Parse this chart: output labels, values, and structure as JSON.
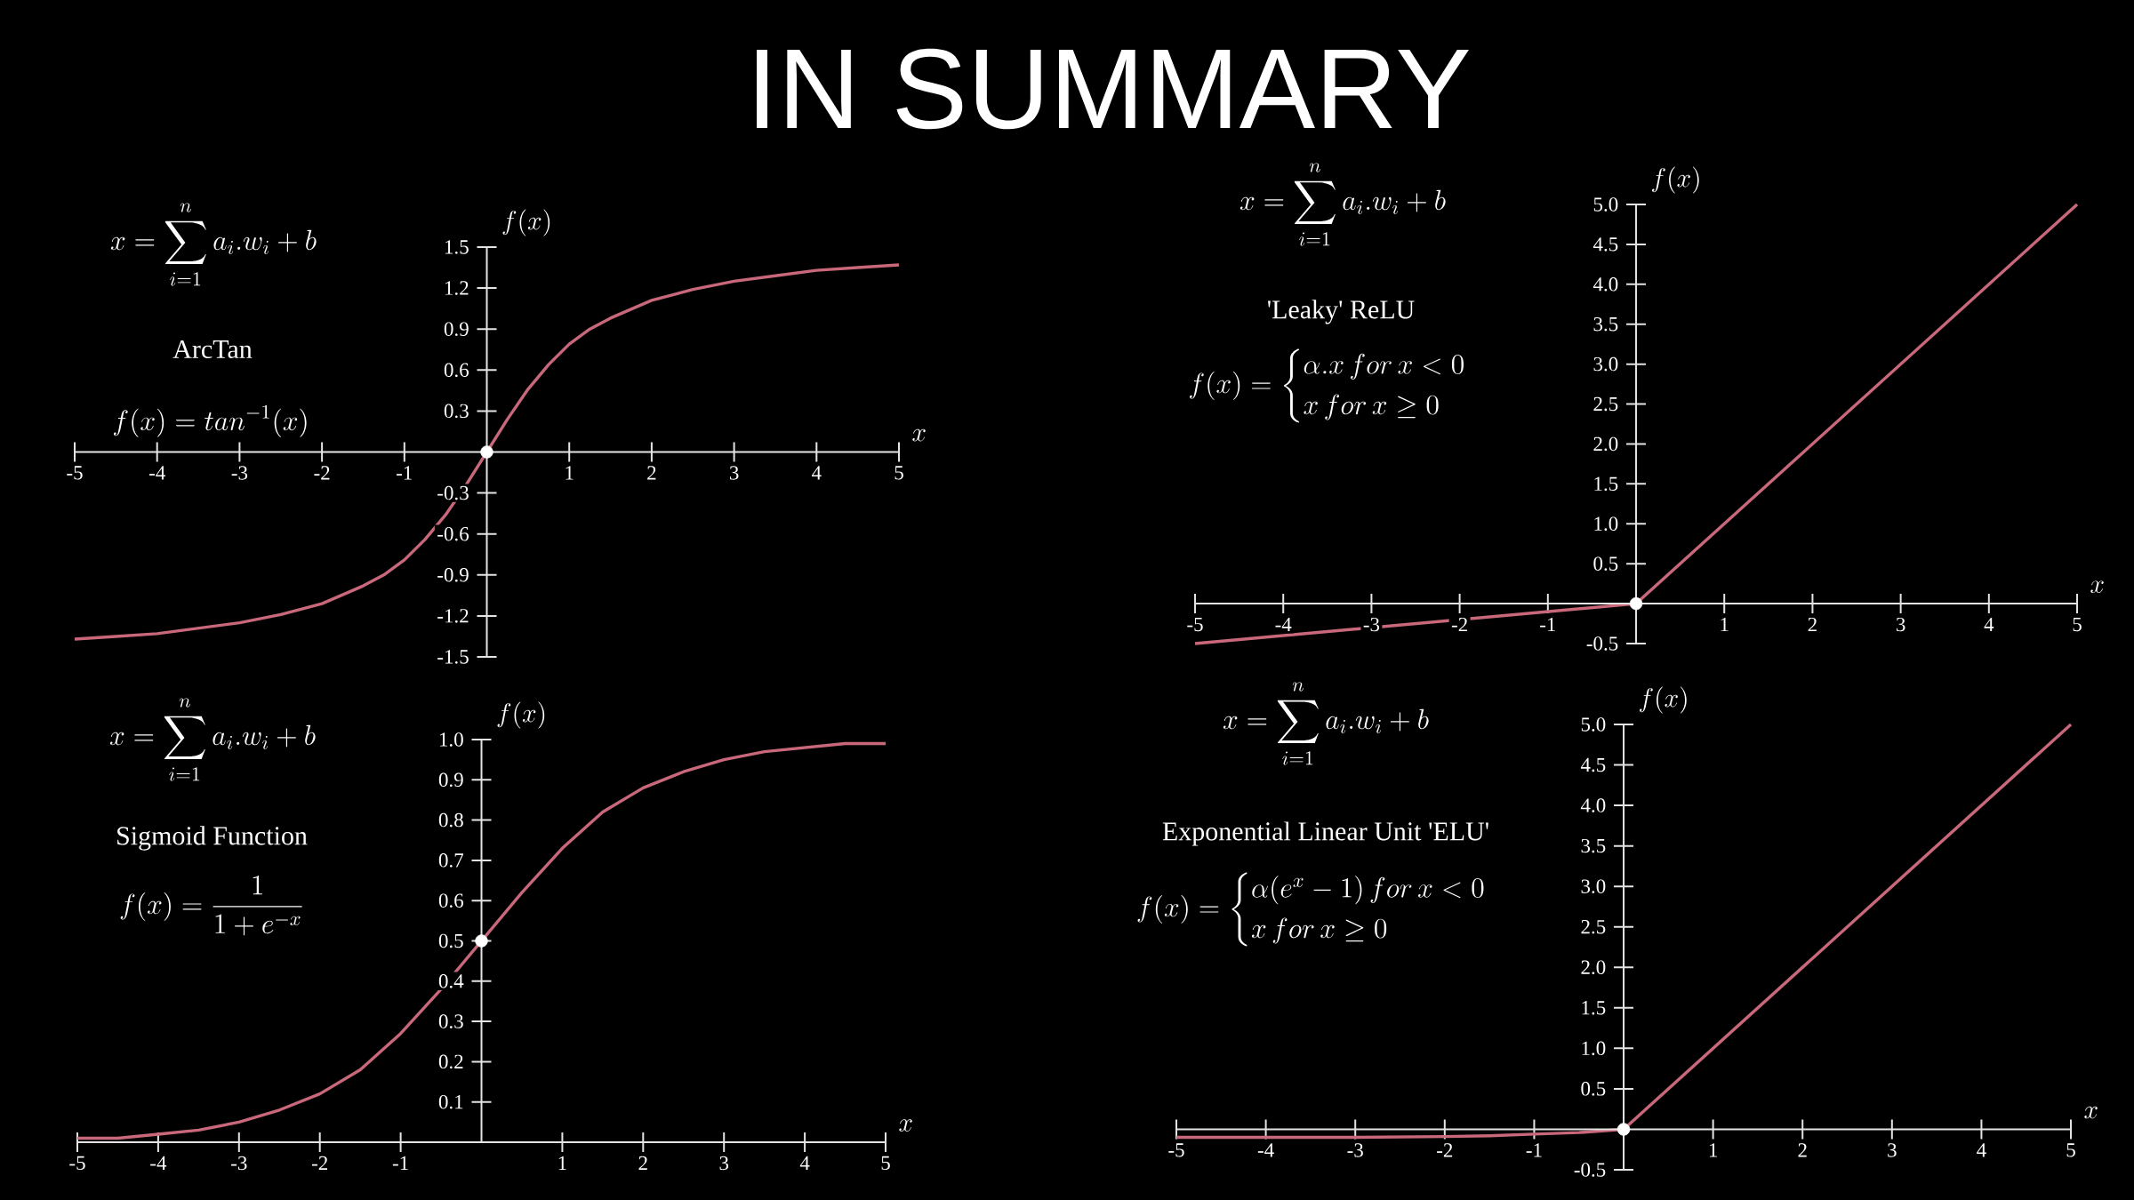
{
  "chart_data": [
    {
      "type": "other",
      "title": "IN SUMMARY"
    },
    {
      "type": "line",
      "title": "ArcTan",
      "annotations": [
        "x = \\sum_{i=1}^{n} a_i.w_i + b",
        "f(x) = tan^{-1}(x)"
      ],
      "xlabel": "x",
      "ylabel": "f(x)",
      "xlim": [
        -5,
        5
      ],
      "ylim": [
        -1.5,
        1.5
      ],
      "xticks": [
        -5,
        -4,
        -3,
        -2,
        -1,
        1,
        2,
        3,
        4,
        5
      ],
      "yticks": [
        -1.5,
        -1.2,
        -0.9,
        -0.6,
        -0.3,
        0.3,
        0.6,
        0.9,
        1.2,
        1.5
      ],
      "series": [
        {
          "type": "line",
          "color": "#c8687a",
          "x": [
            -5,
            -4.5,
            -4,
            -3.5,
            -3,
            -2.5,
            -2,
            -1.5,
            -1.25,
            -1,
            -0.75,
            -0.5,
            -0.25,
            0,
            0.25,
            0.5,
            0.75,
            1,
            1.25,
            1.5,
            2,
            2.5,
            3,
            3.5,
            4,
            4.5,
            5
          ],
          "values": [
            -1.37,
            -1.35,
            -1.33,
            -1.29,
            -1.25,
            -1.19,
            -1.11,
            -0.98,
            -0.9,
            -0.79,
            -0.64,
            -0.46,
            -0.24,
            0,
            0.24,
            0.46,
            0.64,
            0.79,
            0.9,
            0.98,
            1.11,
            1.19,
            1.25,
            1.29,
            1.33,
            1.35,
            1.37
          ]
        },
        {
          "type": "scatter",
          "color": "#ffffff",
          "marker": "circle",
          "x": [
            0
          ],
          "values": [
            0
          ]
        }
      ]
    },
    {
      "type": "line",
      "title": "'Leaky' ReLU",
      "annotations": [
        "x = \\sum_{i=1}^{n} a_i.w_i + b",
        "f(x) =\\begin{cases}\\alpha.x\\,for\\,x < 0\\\\ x\\,for\\,x \\geq 0\\end{cases}"
      ],
      "xlabel": "x",
      "ylabel": "f(x)",
      "xlim": [
        -5,
        5
      ],
      "ylim": [
        -0.5,
        5
      ],
      "xticks": [
        -5,
        -4,
        -3,
        -2,
        -1,
        1,
        2,
        3,
        4,
        5
      ],
      "yticks": [
        -0.5,
        0.5,
        {
          "value": 1,
          "label": "1.0"
        },
        1.5,
        {
          "value": 2,
          "label": "2.0"
        },
        2.5,
        {
          "value": 3,
          "label": "3.0"
        },
        3.5,
        {
          "value": 4,
          "label": "4.0"
        },
        4.5,
        {
          "value": 5,
          "label": "5.0"
        }
      ],
      "series": [
        {
          "type": "line",
          "color": "#c8687a",
          "x": [
            -5,
            0,
            5
          ],
          "values": [
            -0.5,
            0,
            5
          ]
        },
        {
          "type": "scatter",
          "color": "#ffffff",
          "marker": "circle",
          "x": [
            0
          ],
          "values": [
            0
          ]
        }
      ]
    },
    {
      "type": "line",
      "title": "Sigmoid Function",
      "annotations": [
        "x = \\sum_{i=1}^{n} a_i.w_i + b",
        "f(x) = \\frac{1}{1 + e^{-x}}"
      ],
      "xlabel": "x",
      "ylabel": "f(x)",
      "xlim": [
        -5,
        5
      ],
      "ylim": [
        0,
        1
      ],
      "xticks": [
        -5,
        -4,
        -3,
        -2,
        -1,
        1,
        2,
        3,
        4,
        5
      ],
      "yticks": [
        0.1,
        0.2,
        0.3,
        0.4,
        0.5,
        0.6,
        0.7,
        0.8,
        0.9,
        {
          "value": 1,
          "label": "1.0"
        }
      ],
      "series": [
        {
          "type": "line",
          "color": "#c8687a",
          "x": [
            -5,
            -4.5,
            -4,
            -3.5,
            -3,
            -2.5,
            -2,
            -1.5,
            -1,
            -0.5,
            0,
            0.5,
            1,
            1.5,
            2,
            2.5,
            3,
            3.5,
            4,
            4.5,
            5
          ],
          "values": [
            0.01,
            0.01,
            0.02,
            0.03,
            0.05,
            0.08,
            0.12,
            0.18,
            0.27,
            0.38,
            0.5,
            0.62,
            0.73,
            0.82,
            0.88,
            0.92,
            0.95,
            0.97,
            0.98,
            0.99,
            0.99
          ]
        },
        {
          "type": "scatter",
          "color": "#ffffff",
          "marker": "circle",
          "x": [
            0
          ],
          "values": [
            0.5
          ]
        }
      ]
    },
    {
      "type": "line",
      "title": "Exponential Linear Unit 'ELU'",
      "annotations": [
        "x = \\sum_{i=1}^{n} a_i.w_i + b",
        "f(x) =\\begin{cases}\\alpha(e^{x} - 1)\\,for\\,x < 0\\\\ x\\,for\\,x \\geq 0\\end{cases}"
      ],
      "xlabel": "x",
      "ylabel": "f(x)",
      "xlim": [
        -5,
        5
      ],
      "ylim": [
        -0.5,
        5
      ],
      "xticks": [
        -5,
        -4,
        -3,
        -2,
        -1,
        1,
        2,
        3,
        4,
        5
      ],
      "yticks": [
        -0.5,
        0.5,
        {
          "value": 1,
          "label": "1.0"
        },
        1.5,
        {
          "value": 2,
          "label": "2.0"
        },
        2.5,
        {
          "value": 3,
          "label": "3.0"
        },
        3.5,
        {
          "value": 4,
          "label": "4.0"
        },
        4.5,
        {
          "value": 5,
          "label": "5.0"
        }
      ],
      "series": [
        {
          "type": "line",
          "color": "#c8687a",
          "x": [
            -5,
            -4,
            -3,
            -2,
            -1.5,
            -1,
            -0.5,
            0,
            5
          ],
          "values": [
            -0.1,
            -0.1,
            -0.1,
            -0.09,
            -0.08,
            -0.06,
            -0.04,
            0,
            5
          ]
        },
        {
          "type": "scatter",
          "color": "#ffffff",
          "marker": "circle",
          "x": [
            0
          ],
          "values": [
            0
          ]
        }
      ]
    }
  ]
}
